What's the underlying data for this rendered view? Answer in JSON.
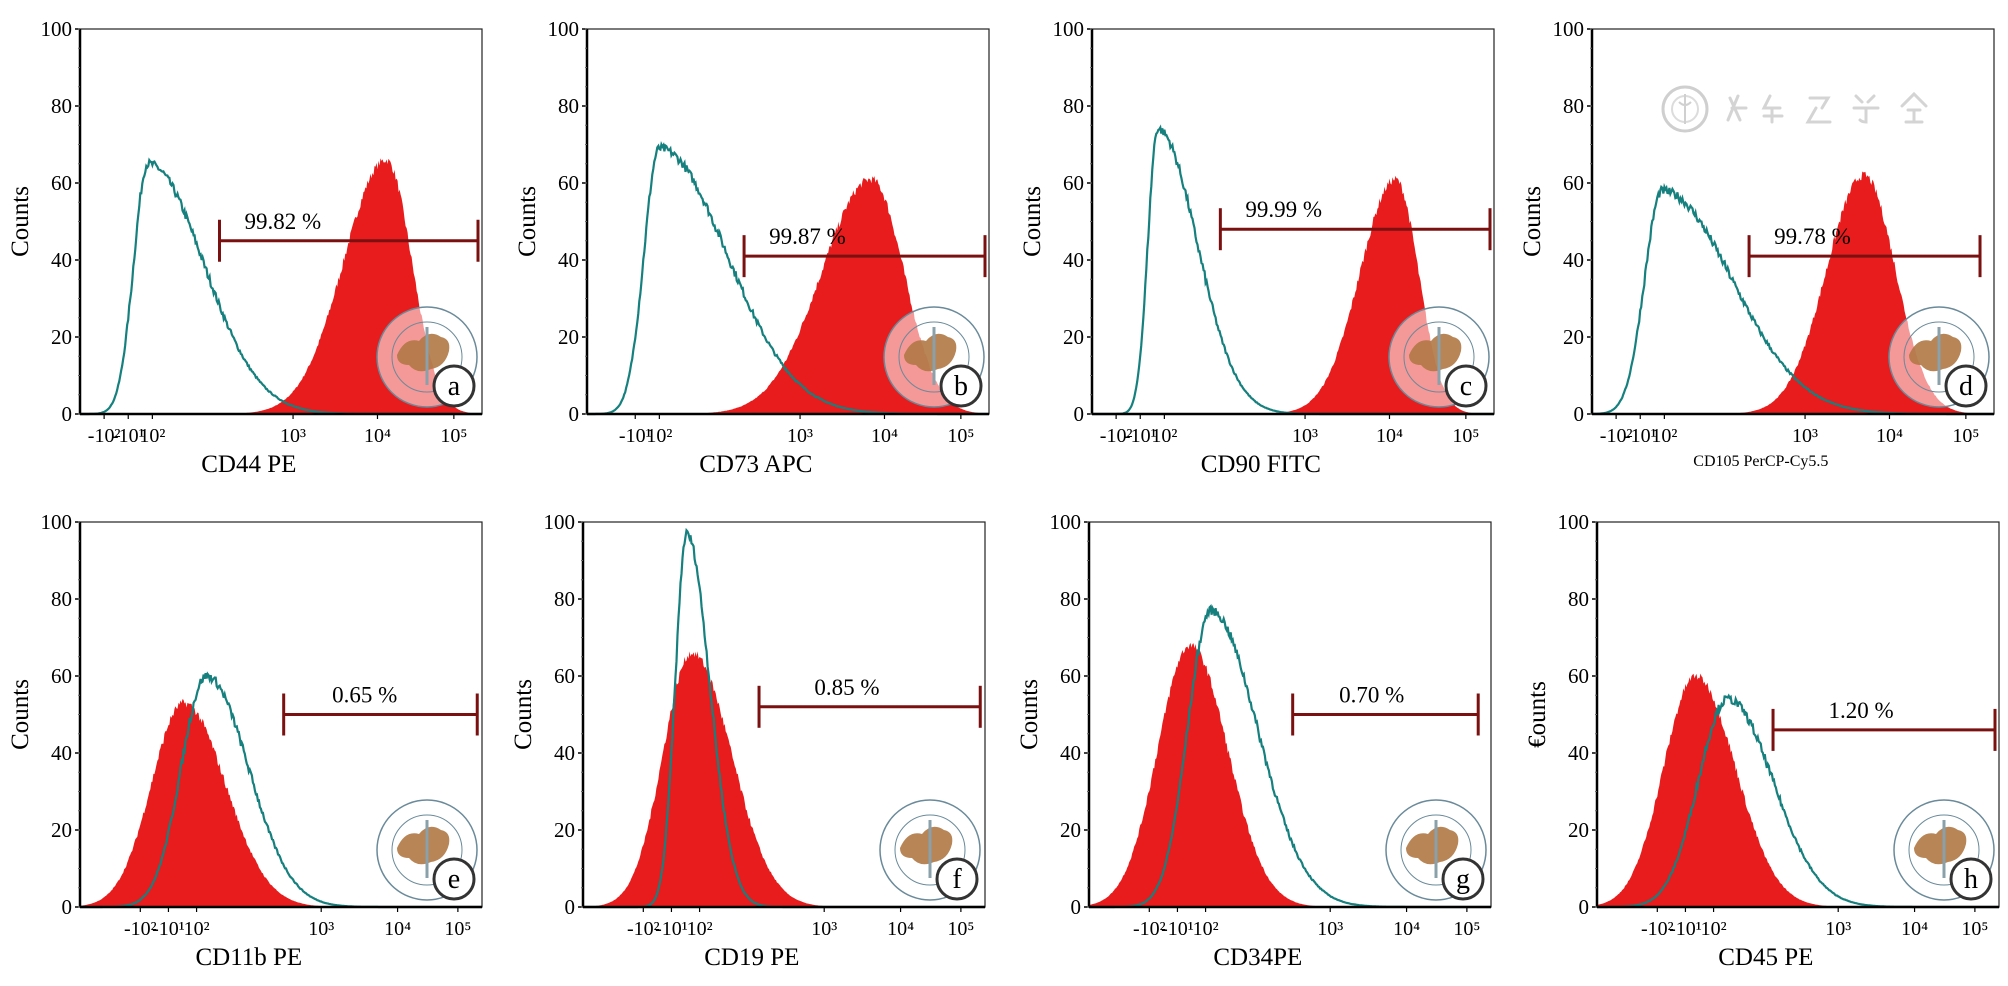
{
  "watermark": {
    "text": "中华医学会",
    "color": "#c8c8c8"
  },
  "colors": {
    "control": "#16807e",
    "sample": "#e81c1c",
    "gate": "#7a1010",
    "badge_map": "#b07845"
  },
  "chart_data": [
    {
      "type": "histogram",
      "panel": "a",
      "ylabel": "Counts",
      "xlabel": "CD44 PE",
      "ylim": [
        0,
        100
      ],
      "yticks": [
        0,
        20,
        40,
        60,
        80,
        100
      ],
      "xticks": [
        {
          "label": "-10²",
          "value": -100
        },
        {
          "label": "-10¹",
          "value": -10
        },
        {
          "label": "10²",
          "value": 100
        },
        {
          "label": "10³",
          "value": 1000
        },
        {
          "label": "10⁴",
          "value": 10000
        },
        {
          "label": "10⁵",
          "value": 100000
        }
      ],
      "control": {
        "peak": 80,
        "lo": 15,
        "hi": 230,
        "height": 65
      },
      "sample": {
        "peak": 13000,
        "lo": 4000,
        "hi": 28000,
        "height": 66
      },
      "gate": {
        "from": 300,
        "to": 200000,
        "level": 45,
        "label": "99.82 %"
      }
    },
    {
      "type": "histogram",
      "panel": "b",
      "ylabel": "Counts",
      "xlabel": "CD73 APC",
      "ylim": [
        0,
        100
      ],
      "yticks": [
        0,
        20,
        40,
        60,
        80,
        100
      ],
      "xticks": [
        {
          "label": "-10¹",
          "value": -10
        },
        {
          "label": "10²",
          "value": 100
        },
        {
          "label": "10³",
          "value": 1000
        },
        {
          "label": "10⁴",
          "value": 10000
        },
        {
          "label": "10⁵",
          "value": 100000
        }
      ],
      "control": {
        "peak": 100,
        "lo": 30,
        "hi": 300,
        "height": 69
      },
      "sample": {
        "peak": 7000,
        "lo": 1800,
        "hi": 18000,
        "height": 61
      },
      "gate": {
        "from": 400,
        "to": 200000,
        "level": 41,
        "label": "99.87 %"
      }
    },
    {
      "type": "histogram",
      "panel": "c",
      "ylabel": "Counts",
      "xlabel": "CD90 FITC",
      "ylim": [
        0,
        100
      ],
      "yticks": [
        0,
        20,
        40,
        60,
        80,
        100
      ],
      "xticks": [
        {
          "label": "-10²",
          "value": -100
        },
        {
          "label": "-10¹",
          "value": -10
        },
        {
          "label": "10²",
          "value": 100
        },
        {
          "label": "10³",
          "value": 1000
        },
        {
          "label": "10⁴",
          "value": 10000
        },
        {
          "label": "10⁵",
          "value": 100000
        }
      ],
      "control": {
        "peak": 70,
        "lo": 25,
        "hi": 170,
        "height": 74
      },
      "sample": {
        "peak": 12000,
        "lo": 4500,
        "hi": 24000,
        "height": 61
      },
      "gate": {
        "from": 250,
        "to": 200000,
        "level": 48,
        "label": "99.99 %"
      }
    },
    {
      "type": "histogram",
      "panel": "d",
      "ylabel": "Counts",
      "xlabel": "CD105 PerCP-Cy5.5",
      "ylim": [
        0,
        100
      ],
      "yticks": [
        0,
        20,
        40,
        60,
        80,
        100
      ],
      "xticks": [
        {
          "label": "-10²",
          "value": -100
        },
        {
          "label": "-10¹",
          "value": -10
        },
        {
          "label": "10²",
          "value": 100
        },
        {
          "label": "10³",
          "value": 1000
        },
        {
          "label": "10⁴",
          "value": 10000
        },
        {
          "label": "10⁵",
          "value": 100000
        }
      ],
      "control": {
        "peak": 90,
        "lo": 10,
        "hi": 300,
        "height": 58
      },
      "sample": {
        "peak": 5000,
        "lo": 1800,
        "hi": 12000,
        "height": 62
      },
      "gate": {
        "from": 400,
        "to": 150000,
        "level": 41,
        "label": "99.78 %"
      }
    },
    {
      "type": "histogram",
      "panel": "e",
      "ylabel": "Counts",
      "xlabel": "CD11b PE",
      "ylim": [
        0,
        100
      ],
      "yticks": [
        0,
        20,
        40,
        60,
        80,
        100
      ],
      "xticks": [
        {
          "label": "-10²",
          "value": -100
        },
        {
          "label": "-10¹",
          "value": -10
        },
        {
          "label": "10²",
          "value": 100
        },
        {
          "label": "10³",
          "value": 1000
        },
        {
          "label": "10⁴",
          "value": 10000
        },
        {
          "label": "10⁵",
          "value": 100000
        }
      ],
      "control": {
        "peak": 120,
        "lo": 40,
        "hi": 260,
        "height": 60
      },
      "sample": {
        "peak": 50,
        "lo": -40,
        "hi": 170,
        "height": 53
      },
      "gate": {
        "from": 500,
        "to": 200000,
        "level": 50,
        "label": "0.65 %"
      }
    },
    {
      "type": "histogram",
      "panel": "f",
      "ylabel": "Counts",
      "xlabel": "CD19 PE",
      "ylim": [
        0,
        100
      ],
      "yticks": [
        0,
        20,
        40,
        60,
        80,
        100
      ],
      "xticks": [
        {
          "label": "-10²",
          "value": -100
        },
        {
          "label": "-10¹",
          "value": -10
        },
        {
          "label": "10²",
          "value": 100
        },
        {
          "label": "10³",
          "value": 1000
        },
        {
          "label": "10⁴",
          "value": 10000
        },
        {
          "label": "10⁵",
          "value": 100000
        }
      ],
      "control": {
        "peak": 50,
        "lo": 5,
        "hi": 120,
        "height": 97
      },
      "sample": {
        "peak": 70,
        "lo": -20,
        "hi": 180,
        "height": 66
      },
      "gate": {
        "from": 300,
        "to": 200000,
        "level": 52,
        "label": "0.85 %"
      }
    },
    {
      "type": "histogram",
      "panel": "g",
      "ylabel": "Counts",
      "xlabel": "CD34PE",
      "ylim": [
        0,
        100
      ],
      "yticks": [
        0,
        20,
        40,
        60,
        80,
        100
      ],
      "xticks": [
        {
          "label": "-10²",
          "value": -100
        },
        {
          "label": "-10¹",
          "value": -10
        },
        {
          "label": "10²",
          "value": 100
        },
        {
          "label": "10³",
          "value": 1000
        },
        {
          "label": "10⁴",
          "value": 10000
        },
        {
          "label": "10⁵",
          "value": 100000
        }
      ],
      "control": {
        "peak": 110,
        "lo": 30,
        "hi": 260,
        "height": 77
      },
      "sample": {
        "peak": 40,
        "lo": -50,
        "hi": 150,
        "height": 68
      },
      "gate": {
        "from": 500,
        "to": 150000,
        "level": 50,
        "label": "0.70 %"
      }
    },
    {
      "type": "histogram",
      "panel": "h",
      "ylabel": "€ounts",
      "xlabel": "CD45 PE",
      "ylim": [
        0,
        100
      ],
      "yticks": [
        0,
        20,
        40,
        60,
        80,
        100
      ],
      "xticks": [
        {
          "label": "-10²",
          "value": -100
        },
        {
          "label": "-10¹",
          "value": -10
        },
        {
          "label": "10²",
          "value": 100
        },
        {
          "label": "10³",
          "value": 1000
        },
        {
          "label": "10⁴",
          "value": 10000
        },
        {
          "label": "10⁵",
          "value": 100000
        }
      ],
      "control": {
        "peak": 130,
        "lo": 40,
        "hi": 300,
        "height": 54
      },
      "sample": {
        "peak": 30,
        "lo": -60,
        "hi": 150,
        "height": 60
      },
      "gate": {
        "from": 300,
        "to": 300000,
        "level": 46,
        "label": "1.20 %"
      }
    }
  ]
}
